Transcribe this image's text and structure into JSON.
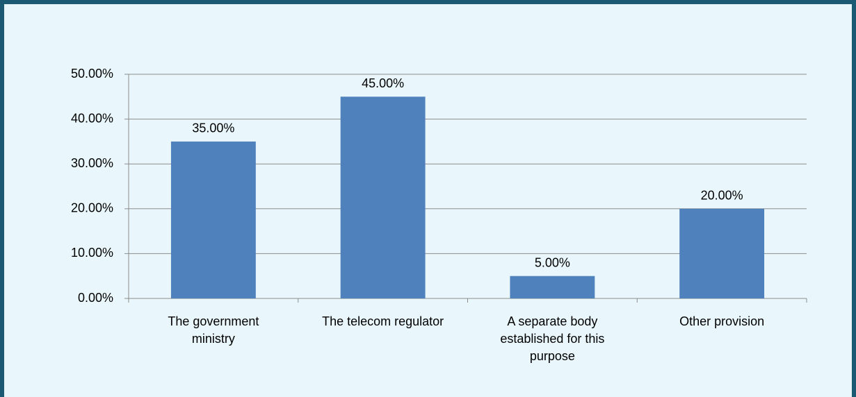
{
  "chart_data": {
    "type": "bar",
    "categories": [
      "The government ministry",
      "The telecom regulator",
      "A separate body established for this purpose",
      "Other provision"
    ],
    "values": [
      35,
      45,
      5,
      20
    ],
    "value_labels": [
      "35.00%",
      "45.00%",
      "5.00%",
      "20.00%"
    ],
    "color": "#4f81bd",
    "ylim": [
      0,
      50
    ],
    "yticks": [
      {
        "value": 0,
        "label": "0.00%"
      },
      {
        "value": 10,
        "label": "10.00%"
      },
      {
        "value": 20,
        "label": "20.00%"
      },
      {
        "value": 30,
        "label": "30.00%"
      },
      {
        "value": 40,
        "label": "40.00%"
      },
      {
        "value": 50,
        "label": "50.00%"
      }
    ],
    "grid": true
  }
}
